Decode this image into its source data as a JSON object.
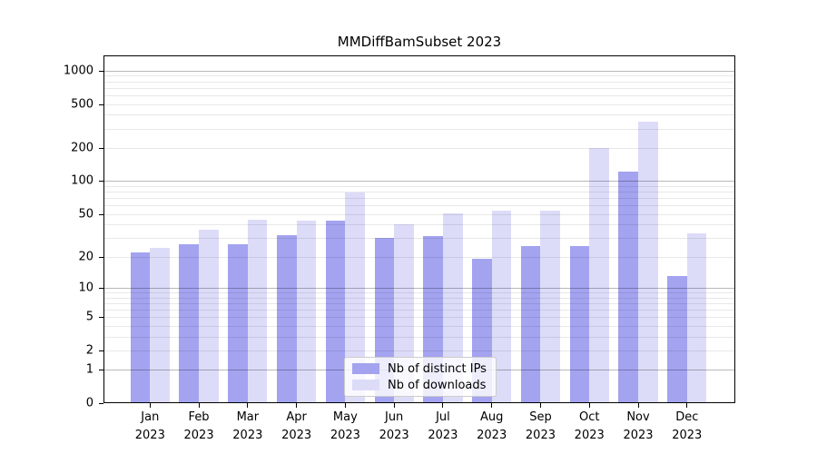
{
  "chart_data": {
    "type": "bar",
    "title": "MMDiffBamSubset 2023",
    "categories": [
      "Jan 2023",
      "Feb 2023",
      "Mar 2023",
      "Apr 2023",
      "May 2023",
      "Jun 2023",
      "Jul 2023",
      "Aug 2023",
      "Sep 2023",
      "Oct 2023",
      "Nov 2023",
      "Dec 2023"
    ],
    "series": [
      {
        "name": "Nb of distinct IPs",
        "color": "#a3a3f0",
        "values": [
          22,
          26,
          26,
          32,
          43,
          30,
          31,
          19,
          25,
          25,
          121,
          13
        ]
      },
      {
        "name": "Nb of downloads",
        "color": "#dcdcf8",
        "values": [
          24,
          36,
          44,
          43,
          79,
          40,
          51,
          54,
          54,
          199,
          344,
          33
        ]
      }
    ],
    "y_axis": {
      "scale": "log1p",
      "tick_labels": [
        0,
        1,
        2,
        5,
        10,
        20,
        50,
        100,
        200,
        500,
        1000
      ],
      "major_gridlines": [
        1,
        10,
        100,
        1000
      ],
      "ylim": [
        0,
        1375
      ],
      "grid": true,
      "grid_over_bars": true
    },
    "legend": {
      "position": "bottom-center",
      "entries": [
        "Nb of distinct IPs",
        "Nb of downloads"
      ]
    },
    "style": {
      "bar_color_ips": "#a3a3f0",
      "bar_color_downloads": "#dcdcf8",
      "grid_major_color": "#bdbdbd",
      "grid_minor_color": "#e8e8e8",
      "axis_color": "#000000",
      "background_color": "#ffffff"
    }
  }
}
